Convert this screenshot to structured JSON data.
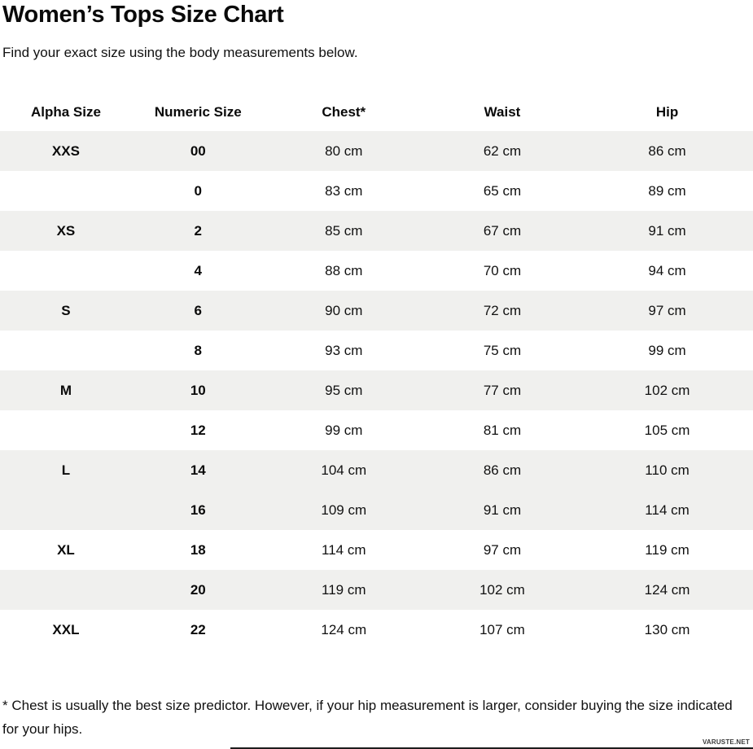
{
  "page": {
    "title": "Women’s Tops Size Chart",
    "subtitle": "Find your exact size using the body measurements below.",
    "footnote": "* Chest is usually the best size predictor. However, if your hip measurement is larger, consider buying the size indicated for your hips.",
    "watermark": "VARUSTE.NET"
  },
  "colors": {
    "stripe": "#f0f0ee",
    "text": "#111111",
    "background": "#ffffff"
  },
  "chart_data": {
    "type": "table",
    "title": "Women’s Tops Size Chart",
    "columns": [
      "Alpha Size",
      "Numeric Size",
      "Chest*",
      "Waist",
      "Hip"
    ],
    "rows": [
      {
        "alpha": "XXS",
        "numeric": "00",
        "chest": "80 cm",
        "waist": "62 cm",
        "hip": "86 cm",
        "shaded": true
      },
      {
        "alpha": "",
        "numeric": "0",
        "chest": "83 cm",
        "waist": "65 cm",
        "hip": "89 cm",
        "shaded": false
      },
      {
        "alpha": "XS",
        "numeric": "2",
        "chest": "85 cm",
        "waist": "67 cm",
        "hip": "91 cm",
        "shaded": true
      },
      {
        "alpha": "",
        "numeric": "4",
        "chest": "88 cm",
        "waist": "70 cm",
        "hip": "94 cm",
        "shaded": false
      },
      {
        "alpha": "S",
        "numeric": "6",
        "chest": "90 cm",
        "waist": "72 cm",
        "hip": "97 cm",
        "shaded": true
      },
      {
        "alpha": "",
        "numeric": "8",
        "chest": "93 cm",
        "waist": "75 cm",
        "hip": "99 cm",
        "shaded": false
      },
      {
        "alpha": "M",
        "numeric": "10",
        "chest": "95 cm",
        "waist": "77 cm",
        "hip": "102 cm",
        "shaded": true
      },
      {
        "alpha": "",
        "numeric": "12",
        "chest": "99 cm",
        "waist": "81 cm",
        "hip": "105 cm",
        "shaded": false
      },
      {
        "alpha": "L",
        "numeric": "14",
        "chest": "104 cm",
        "waist": "86 cm",
        "hip": "110 cm",
        "shaded": true
      },
      {
        "alpha": "",
        "numeric": "16",
        "chest": "109 cm",
        "waist": "91 cm",
        "hip": "114 cm",
        "shaded": true
      },
      {
        "alpha": "XL",
        "numeric": "18",
        "chest": "114 cm",
        "waist": "97 cm",
        "hip": "119 cm",
        "shaded": false
      },
      {
        "alpha": "",
        "numeric": "20",
        "chest": "119 cm",
        "waist": "102 cm",
        "hip": "124 cm",
        "shaded": true
      },
      {
        "alpha": "XXL",
        "numeric": "22",
        "chest": "124 cm",
        "waist": "107 cm",
        "hip": "130 cm",
        "shaded": false
      }
    ]
  }
}
